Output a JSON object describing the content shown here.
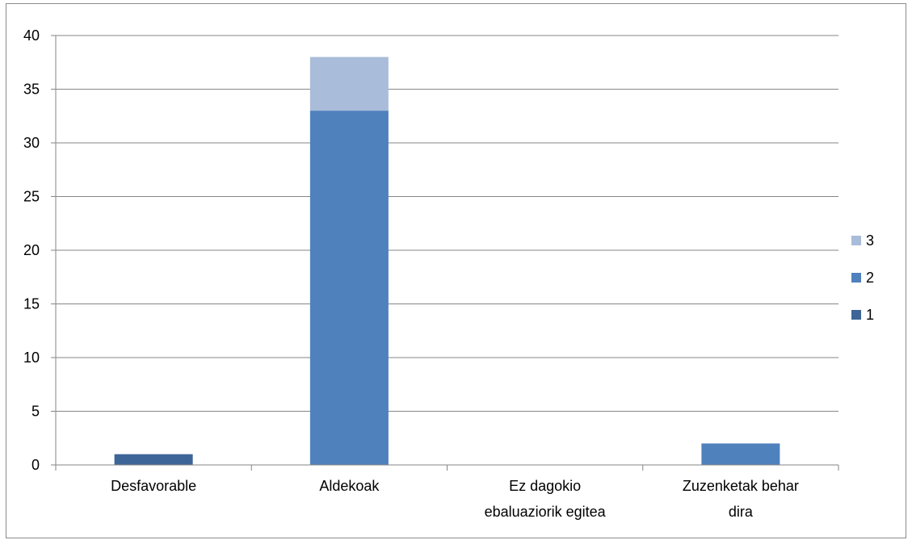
{
  "chart_data": {
    "type": "bar",
    "stacked": true,
    "categories": [
      "Desfavorable",
      "Aldekoak",
      "Ez dagokio ebaluaziorik egitea",
      "Zuzenketak behar dira"
    ],
    "category_lines": [
      [
        "Desfavorable"
      ],
      [
        "Aldekoak"
      ],
      [
        "Ez dagokio",
        "ebaluaziorik egitea"
      ],
      [
        "Zuzenketak behar",
        "dira"
      ]
    ],
    "series": [
      {
        "name": "1",
        "color": "#3d6597",
        "values": [
          1,
          0,
          0,
          0
        ]
      },
      {
        "name": "2",
        "color": "#4f81bd",
        "values": [
          0,
          33,
          0,
          2
        ]
      },
      {
        "name": "3",
        "color": "#a9bcd9",
        "values": [
          0,
          5,
          0,
          0
        ]
      }
    ],
    "ylim": [
      0,
      40
    ],
    "yticks": [
      "0",
      "5",
      "10",
      "15",
      "20",
      "25",
      "30",
      "35",
      "40"
    ],
    "grid": true,
    "legend_position": "right",
    "title": "",
    "xlabel": "",
    "ylabel": ""
  }
}
